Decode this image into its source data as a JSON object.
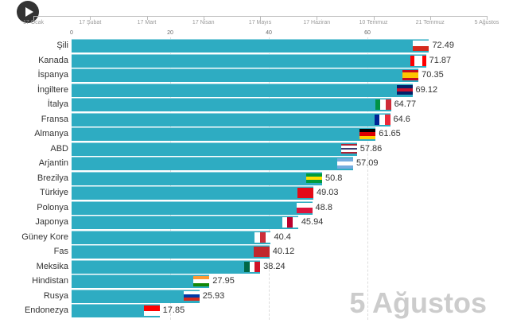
{
  "timeline": {
    "labels": [
      "17 Ocak",
      "17 Şubat",
      "17 Mart",
      "17 Nisan",
      "17 Mayıs",
      "17 Haziran",
      "10 Temmuz",
      "21 Temmuz",
      "5 Ağustos"
    ],
    "progress": 1.0
  },
  "axis": {
    "ticks": [
      "0",
      "20",
      "40",
      "60"
    ],
    "tick_values": [
      0,
      20,
      40,
      60
    ]
  },
  "bar_color": "#2eacc2",
  "current_date": "5 Ağustos",
  "rows": [
    {
      "name": "Şili",
      "value": "72.49",
      "flag": {
        "dir": "col",
        "colors": [
          "#ffffff",
          "#d52b1e"
        ]
      }
    },
    {
      "name": "Kanada",
      "value": "71.87",
      "flag": {
        "dir": "row",
        "colors": [
          "#ff0000",
          "#ffffff",
          "#ffffff",
          "#ff0000"
        ]
      }
    },
    {
      "name": "İspanya",
      "value": "70.35",
      "flag": {
        "dir": "col",
        "colors": [
          "#c60b1e",
          "#ffc400",
          "#ffc400",
          "#c60b1e"
        ]
      }
    },
    {
      "name": "İngiltere",
      "value": "69.12",
      "flag": {
        "dir": "col",
        "colors": [
          "#012169",
          "#c8102e",
          "#012169"
        ]
      }
    },
    {
      "name": "İtalya",
      "value": "64.77",
      "flag": {
        "dir": "row",
        "colors": [
          "#009246",
          "#ffffff",
          "#ce2b37"
        ]
      }
    },
    {
      "name": "Fransa",
      "value": "64.6",
      "flag": {
        "dir": "row",
        "colors": [
          "#002395",
          "#ffffff",
          "#ed2939"
        ]
      }
    },
    {
      "name": "Almanya",
      "value": "61.65",
      "flag": {
        "dir": "col",
        "colors": [
          "#000000",
          "#dd0000",
          "#ffce00"
        ]
      }
    },
    {
      "name": "ABD",
      "value": "57.86",
      "flag": {
        "dir": "col",
        "colors": [
          "#b22234",
          "#ffffff",
          "#3c3b6e",
          "#ffffff",
          "#b22234"
        ]
      }
    },
    {
      "name": "Arjantin",
      "value": "57.09",
      "flag": {
        "dir": "col",
        "colors": [
          "#74acdf",
          "#ffffff",
          "#74acdf"
        ]
      }
    },
    {
      "name": "Brezilya",
      "value": "50.8",
      "flag": {
        "dir": "col",
        "colors": [
          "#009c3b",
          "#ffdf00",
          "#009c3b"
        ]
      }
    },
    {
      "name": "Türkiye",
      "value": "49.03",
      "flag": {
        "dir": "col",
        "colors": [
          "#e30a17"
        ]
      }
    },
    {
      "name": "Polonya",
      "value": "48.8",
      "flag": {
        "dir": "col",
        "colors": [
          "#ffffff",
          "#dc143c"
        ]
      }
    },
    {
      "name": "Japonya",
      "value": "45.94",
      "flag": {
        "dir": "row",
        "colors": [
          "#ffffff",
          "#bc002d",
          "#ffffff"
        ]
      }
    },
    {
      "name": "Güney Kore",
      "value": "40.4",
      "flag": {
        "dir": "row",
        "colors": [
          "#ffffff",
          "#cd2e3a",
          "#ffffff"
        ]
      }
    },
    {
      "name": "Fas",
      "value": "40.12",
      "flag": {
        "dir": "col",
        "colors": [
          "#c1272d"
        ]
      }
    },
    {
      "name": "Meksika",
      "value": "38.24",
      "flag": {
        "dir": "row",
        "colors": [
          "#006847",
          "#ffffff",
          "#ce1126"
        ]
      }
    },
    {
      "name": "Hindistan",
      "value": "27.95",
      "flag": {
        "dir": "col",
        "colors": [
          "#ff9933",
          "#ffffff",
          "#138808"
        ]
      }
    },
    {
      "name": "Rusya",
      "value": "25.93",
      "flag": {
        "dir": "col",
        "colors": [
          "#ffffff",
          "#0039a6",
          "#d52b1e"
        ]
      }
    },
    {
      "name": "Endonezya",
      "value": "17.85",
      "flag": {
        "dir": "col",
        "colors": [
          "#ff0000",
          "#ffffff"
        ]
      }
    }
  ]
}
